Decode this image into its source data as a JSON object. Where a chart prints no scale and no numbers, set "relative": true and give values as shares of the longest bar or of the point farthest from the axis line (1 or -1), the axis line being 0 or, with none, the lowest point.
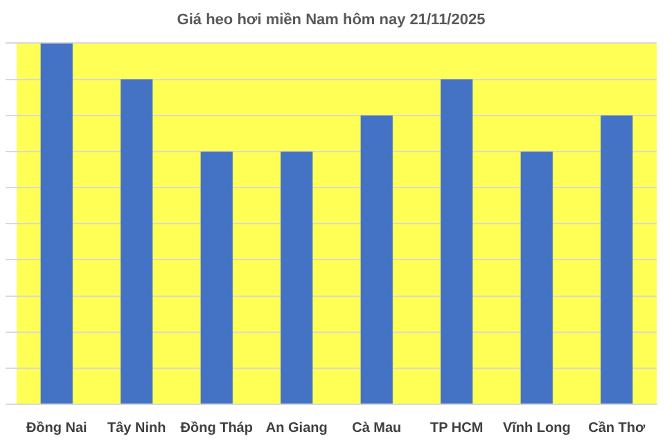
{
  "chart_data": {
    "type": "bar",
    "title": "Giá heo hơi miền Nam hôm nay 21/11/2025",
    "categories": [
      "Đồng Nai",
      "Tây Ninh",
      "Đồng Tháp",
      "An Giang",
      "Cà Mau",
      "TP HCM",
      "Vĩnh Long",
      "Cần Thơ"
    ],
    "values": [
      1,
      0.9,
      0.7,
      0.7,
      0.8,
      0.9,
      0.7,
      0.8
    ],
    "color": "#4472c4",
    "relative": true,
    "grid": "y"
  }
}
